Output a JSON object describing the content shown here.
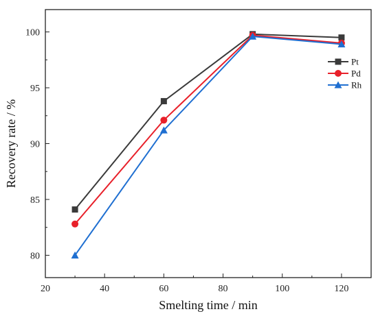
{
  "chart_data": {
    "type": "line",
    "xlabel": "Smelting time / min",
    "ylabel": "Recovery rate / %",
    "xlim": [
      20,
      130
    ],
    "ylim": [
      78,
      102
    ],
    "xticks": [
      20,
      40,
      60,
      80,
      100,
      120
    ],
    "yticks": [
      80,
      85,
      90,
      95,
      100
    ],
    "x": [
      30,
      60,
      90,
      120
    ],
    "grid": false,
    "legend": "top-right",
    "series": [
      {
        "name": "Pt",
        "marker": "square",
        "color": "#3a3a3a",
        "values": [
          84.1,
          93.8,
          99.8,
          99.5
        ]
      },
      {
        "name": "Pd",
        "marker": "circle",
        "color": "#e8202a",
        "values": [
          82.8,
          92.1,
          99.7,
          99.0
        ]
      },
      {
        "name": "Rh",
        "marker": "triangle",
        "color": "#1f6fd1",
        "values": [
          80.0,
          91.2,
          99.6,
          98.9
        ]
      }
    ]
  }
}
